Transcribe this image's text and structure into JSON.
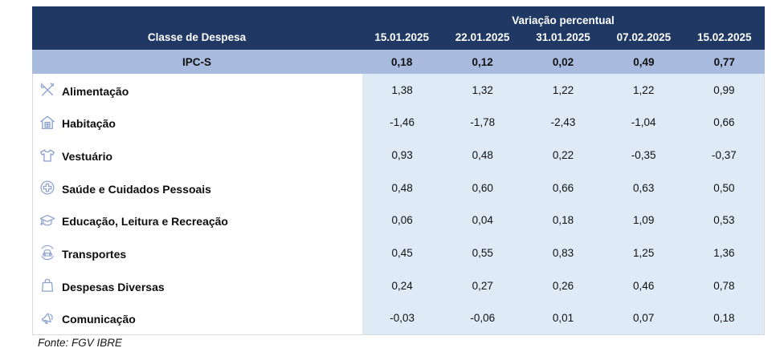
{
  "table": {
    "group_header": "Variação percentual",
    "col1_header": "Classe de Despesa",
    "date_headers": [
      "15.01.2025",
      "22.01.2025",
      "31.01.2025",
      "07.02.2025",
      "15.02.2025"
    ],
    "summary_row": {
      "label": "IPC-S",
      "values": [
        "0,18",
        "0,12",
        "0,02",
        "0,49",
        "0,77"
      ]
    },
    "rows": [
      {
        "label": "Alimentação",
        "icon": "utensils-icon",
        "values": [
          "1,38",
          "1,32",
          "1,22",
          "1,22",
          "0,99"
        ]
      },
      {
        "label": "Habitação",
        "icon": "house-icon",
        "values": [
          "-1,46",
          "-1,78",
          "-2,43",
          "-1,04",
          "0,66"
        ]
      },
      {
        "label": "Vestuário",
        "icon": "tshirt-icon",
        "values": [
          "0,93",
          "0,48",
          "0,22",
          "-0,35",
          "-0,37"
        ]
      },
      {
        "label": "Saúde e Cuidados Pessoais",
        "icon": "medical-cross-icon",
        "values": [
          "0,48",
          "0,60",
          "0,66",
          "0,63",
          "0,50"
        ]
      },
      {
        "label": "Educação, Leitura e Recreação",
        "icon": "graduation-cap-icon",
        "values": [
          "0,06",
          "0,04",
          "0,18",
          "1,09",
          "0,53"
        ]
      },
      {
        "label": "Transportes",
        "icon": "car-icon",
        "values": [
          "0,45",
          "0,55",
          "0,83",
          "1,25",
          "1,36"
        ]
      },
      {
        "label": "Despesas Diversas",
        "icon": "shopping-bag-icon",
        "values": [
          "0,24",
          "0,27",
          "0,26",
          "0,46",
          "0,78"
        ]
      },
      {
        "label": "Comunicação",
        "icon": "megaphone-icon",
        "values": [
          "-0,03",
          "-0,06",
          "0,01",
          "0,07",
          "0,18"
        ]
      }
    ]
  },
  "footer": {
    "source": "Fonte: FGV IBRE"
  },
  "colors": {
    "header_bg": "#1F3864",
    "summary_bg": "#A8BBDF",
    "data_bg": "#DEEBF7",
    "icon": "#8FA3CE",
    "header_text": "#FFFFFF",
    "body_text": "#111111"
  },
  "chart_data": {
    "type": "table",
    "title": "Variação percentual",
    "columns": [
      "Classe de Despesa",
      "15.01.2025",
      "22.01.2025",
      "31.01.2025",
      "07.02.2025",
      "15.02.2025"
    ],
    "rows": [
      [
        "IPC-S",
        0.18,
        0.12,
        0.02,
        0.49,
        0.77
      ],
      [
        "Alimentação",
        1.38,
        1.32,
        1.22,
        1.22,
        0.99
      ],
      [
        "Habitação",
        -1.46,
        -1.78,
        -2.43,
        -1.04,
        0.66
      ],
      [
        "Vestuário",
        0.93,
        0.48,
        0.22,
        -0.35,
        -0.37
      ],
      [
        "Saúde e Cuidados Pessoais",
        0.48,
        0.6,
        0.66,
        0.63,
        0.5
      ],
      [
        "Educação, Leitura e Recreação",
        0.06,
        0.04,
        0.18,
        1.09,
        0.53
      ],
      [
        "Transportes",
        0.45,
        0.55,
        0.83,
        1.25,
        1.36
      ],
      [
        "Despesas Diversas",
        0.24,
        0.27,
        0.26,
        0.46,
        0.78
      ],
      [
        "Comunicação",
        -0.03,
        -0.06,
        0.01,
        0.07,
        0.18
      ]
    ],
    "source": "Fonte: FGV IBRE"
  }
}
